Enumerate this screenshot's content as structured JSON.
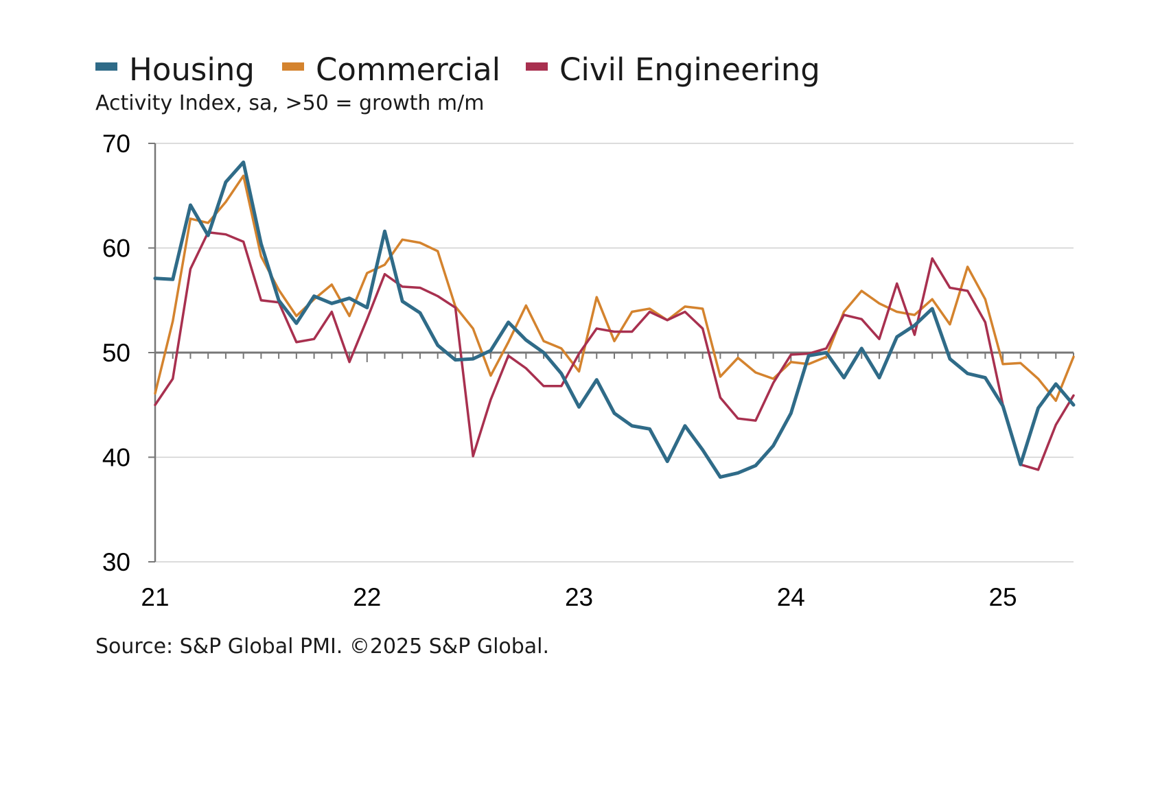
{
  "legend": {
    "items": [
      {
        "label": "Housing",
        "color": "#2f6b88"
      },
      {
        "label": "Commercial",
        "color": "#d4832e"
      },
      {
        "label": "Civil Engineering",
        "color": "#a8304f"
      }
    ]
  },
  "subtitle": "Activity Index, sa, >50 = growth m/m",
  "source": "Source: S&P Global PMI. ©2025 S&P Global.",
  "chart_data": {
    "type": "line",
    "title": "",
    "xlabel": "",
    "ylabel": "Activity Index, sa, >50 = growth m/m",
    "ylim": [
      30,
      70
    ],
    "yticks": [
      30,
      40,
      50,
      60,
      70
    ],
    "reference_line": 50,
    "x_start": "Jan 2021",
    "x_end": "May 2025",
    "xtick_labels": [
      {
        "label": "21",
        "index": 0
      },
      {
        "label": "22",
        "index": 12
      },
      {
        "label": "23",
        "index": 24
      },
      {
        "label": "24",
        "index": 36
      },
      {
        "label": "25",
        "index": 48
      }
    ],
    "grid": true,
    "legend_position": "top-left",
    "series": [
      {
        "name": "Housing",
        "color": "#2f6b88",
        "values": [
          57.1,
          57.0,
          64.1,
          61.2,
          66.3,
          68.2,
          60.4,
          55.0,
          52.8,
          55.4,
          54.7,
          55.2,
          54.3,
          61.6,
          54.9,
          53.8,
          50.7,
          49.3,
          49.4,
          50.2,
          52.9,
          51.2,
          50.0,
          48.0,
          44.8,
          47.4,
          44.2,
          43.0,
          42.7,
          39.6,
          43.0,
          40.7,
          38.1,
          38.5,
          39.2,
          41.1,
          44.2,
          49.7,
          50.0,
          47.6,
          50.4,
          47.6,
          51.5,
          52.6,
          54.2,
          49.4,
          48.0,
          47.6,
          44.9,
          39.3,
          44.7,
          47.0,
          45.0
        ]
      },
      {
        "name": "Commercial",
        "color": "#d4832e",
        "values": [
          46.1,
          53.0,
          62.8,
          62.4,
          64.4,
          66.9,
          59.2,
          56.0,
          53.5,
          55.1,
          56.5,
          53.5,
          57.6,
          58.4,
          60.8,
          60.5,
          59.7,
          54.4,
          52.3,
          47.8,
          51.0,
          54.5,
          51.1,
          50.4,
          48.2,
          55.3,
          51.1,
          53.9,
          54.2,
          53.1,
          54.4,
          54.2,
          47.7,
          49.5,
          48.1,
          47.5,
          49.1,
          48.9,
          49.6,
          53.9,
          55.9,
          54.7,
          53.9,
          53.6,
          55.1,
          52.7,
          58.2,
          55.1,
          48.9,
          49.0,
          47.5,
          45.4,
          49.6
        ]
      },
      {
        "name": "Civil Engineering",
        "color": "#a8304f",
        "values": [
          45.0,
          47.5,
          58.0,
          61.5,
          61.3,
          60.6,
          55.0,
          54.8,
          51.0,
          51.3,
          53.9,
          49.1,
          53.2,
          57.5,
          56.3,
          56.2,
          55.4,
          54.3,
          40.1,
          45.5,
          49.7,
          48.5,
          46.8,
          46.8,
          49.9,
          52.3,
          52.0,
          52.0,
          53.9,
          53.1,
          53.9,
          52.3,
          45.7,
          43.7,
          43.5,
          47.1,
          49.8,
          49.9,
          50.4,
          53.6,
          53.2,
          51.3,
          56.6,
          51.7,
          59.0,
          56.2,
          55.9,
          52.9,
          45.0,
          39.3,
          38.8,
          43.1,
          45.9
        ]
      }
    ]
  }
}
